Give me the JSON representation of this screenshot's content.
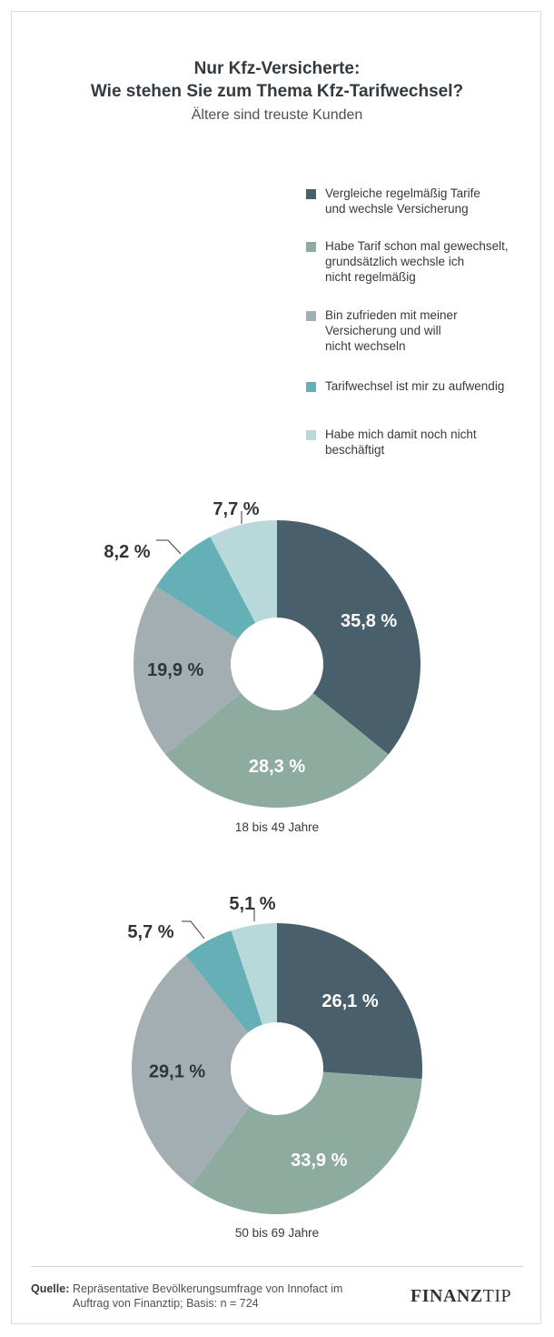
{
  "header": {
    "title_line1": "Nur Kfz-Versicherte:",
    "title_line2": "Wie stehen Sie zum Thema Kfz-Tarifwechsel?",
    "subtitle": "Ältere sind treuste Kunden"
  },
  "legend": [
    {
      "label": "Vergleiche regelmäßig Tarife\nund wechsle Versicherung",
      "color": "#4a5f6c"
    },
    {
      "label": "Habe Tarif schon mal gewechselt,\ngrundsätzlich wechsle ich\nnicht regelmäßig",
      "color": "#8eaba0"
    },
    {
      "label": "Bin zufrieden mit meiner\nVersicherung und will\nnicht wechseln",
      "color": "#a3aeb3"
    },
    {
      "label": "Tarifwechsel ist mir zu aufwendig",
      "color": "#65b0b6"
    },
    {
      "label": "Habe mich damit noch nicht\nbeschäftigt",
      "color": "#b9d8da"
    }
  ],
  "chart_data": [
    {
      "type": "pie",
      "subtype": "donut",
      "xlabel": "18 bis 49 Jahre",
      "categories": [
        "Vergleiche regelmäßig Tarife und wechsle Versicherung",
        "Habe Tarif schon mal gewechselt, grundsätzlich wechsle ich nicht regelmäßig",
        "Bin zufrieden mit meiner Versicherung und will nicht wechseln",
        "Tarifwechsel ist mir zu aufwendig",
        "Habe mich damit noch nicht beschäftigt"
      ],
      "values": [
        35.8,
        28.3,
        19.9,
        8.2,
        7.7
      ],
      "labels": [
        "35,8 %",
        "28,3 %",
        "19,9 %",
        "8,2 %",
        "7,7 %"
      ],
      "colors": [
        "#4a5f6c",
        "#8eaba0",
        "#a3aeb3",
        "#65b0b6",
        "#b9d8da"
      ]
    },
    {
      "type": "pie",
      "subtype": "donut",
      "xlabel": "50 bis 69 Jahre",
      "categories": [
        "Vergleiche regelmäßig Tarife und wechsle Versicherung",
        "Habe Tarif schon mal gewechselt, grundsätzlich wechsle ich nicht regelmäßig",
        "Bin zufrieden mit meiner Versicherung und will nicht wechseln",
        "Tarifwechsel ist mir zu aufwendig",
        "Habe mich damit noch nicht beschäftigt"
      ],
      "values": [
        26.1,
        33.9,
        29.1,
        5.7,
        5.1
      ],
      "labels": [
        "26,1 %",
        "33,9 %",
        "29,1 %",
        "5,7 %",
        "5,1 %"
      ],
      "colors": [
        "#4a5f6c",
        "#8eaba0",
        "#a3aeb3",
        "#65b0b6",
        "#b9d8da"
      ]
    }
  ],
  "footer": {
    "source_label": "Quelle:",
    "source_text": "Repräsentative Bevölkerungsumfrage von Innofact im\nAuftrag von Finanztip; Basis: n = 724",
    "logo_part1": "FINANZ",
    "logo_part2": "TIP"
  }
}
